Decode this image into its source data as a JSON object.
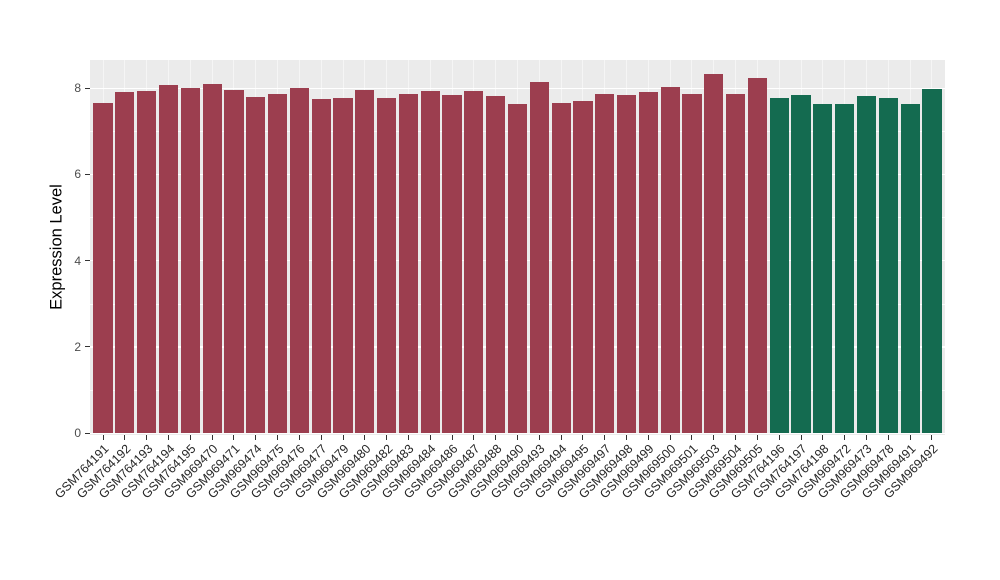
{
  "figure": {
    "background": "#ffffff",
    "panel_background": "#EBEBEB",
    "gridline_color": "#ffffff"
  },
  "chart_data": {
    "type": "bar",
    "title": "",
    "xlabel": "",
    "ylabel": "Expression Level",
    "ylim": [
      0,
      8.65
    ],
    "yticks": [
      0,
      2,
      4,
      6,
      8
    ],
    "yticks_minor": [
      1,
      3,
      5,
      7
    ],
    "grid": "horizontal major + minor white gridlines, faint vertical gridlines at each category, on gray panel",
    "legend_position": "none",
    "x_tick_label_rotation_deg": -45,
    "categories": [
      "GSM764191",
      "GSM764192",
      "GSM764193",
      "GSM764194",
      "GSM764195",
      "GSM969470",
      "GSM969471",
      "GSM969474",
      "GSM969475",
      "GSM969476",
      "GSM969477",
      "GSM969479",
      "GSM969480",
      "GSM969482",
      "GSM969483",
      "GSM969484",
      "GSM969486",
      "GSM969487",
      "GSM969488",
      "GSM969490",
      "GSM969493",
      "GSM969494",
      "GSM969495",
      "GSM969497",
      "GSM969498",
      "GSM969499",
      "GSM969500",
      "GSM969501",
      "GSM969503",
      "GSM969504",
      "GSM969505",
      "GSM764196",
      "GSM764197",
      "GSM764198",
      "GSM969472",
      "GSM969473",
      "GSM969478",
      "GSM969491",
      "GSM969492"
    ],
    "values": [
      7.65,
      7.9,
      7.92,
      8.08,
      8.0,
      8.1,
      7.95,
      7.8,
      7.85,
      8.0,
      7.75,
      7.78,
      7.95,
      7.76,
      7.86,
      7.92,
      7.84,
      7.92,
      7.82,
      7.62,
      8.14,
      7.66,
      7.7,
      7.86,
      7.84,
      7.9,
      8.02,
      7.86,
      8.32,
      7.86,
      8.24,
      7.76,
      7.84,
      7.64,
      7.63,
      7.82,
      7.76,
      7.64,
      7.98
    ],
    "groups": [
      "maroon",
      "maroon",
      "maroon",
      "maroon",
      "maroon",
      "maroon",
      "maroon",
      "maroon",
      "maroon",
      "maroon",
      "maroon",
      "maroon",
      "maroon",
      "maroon",
      "maroon",
      "maroon",
      "maroon",
      "maroon",
      "maroon",
      "maroon",
      "maroon",
      "maroon",
      "maroon",
      "maroon",
      "maroon",
      "maroon",
      "maroon",
      "maroon",
      "maroon",
      "maroon",
      "maroon",
      "green",
      "green",
      "green",
      "green",
      "green",
      "green",
      "green",
      "green"
    ],
    "palette": {
      "maroon": "#9C3E4F",
      "green": "#146B50"
    }
  }
}
